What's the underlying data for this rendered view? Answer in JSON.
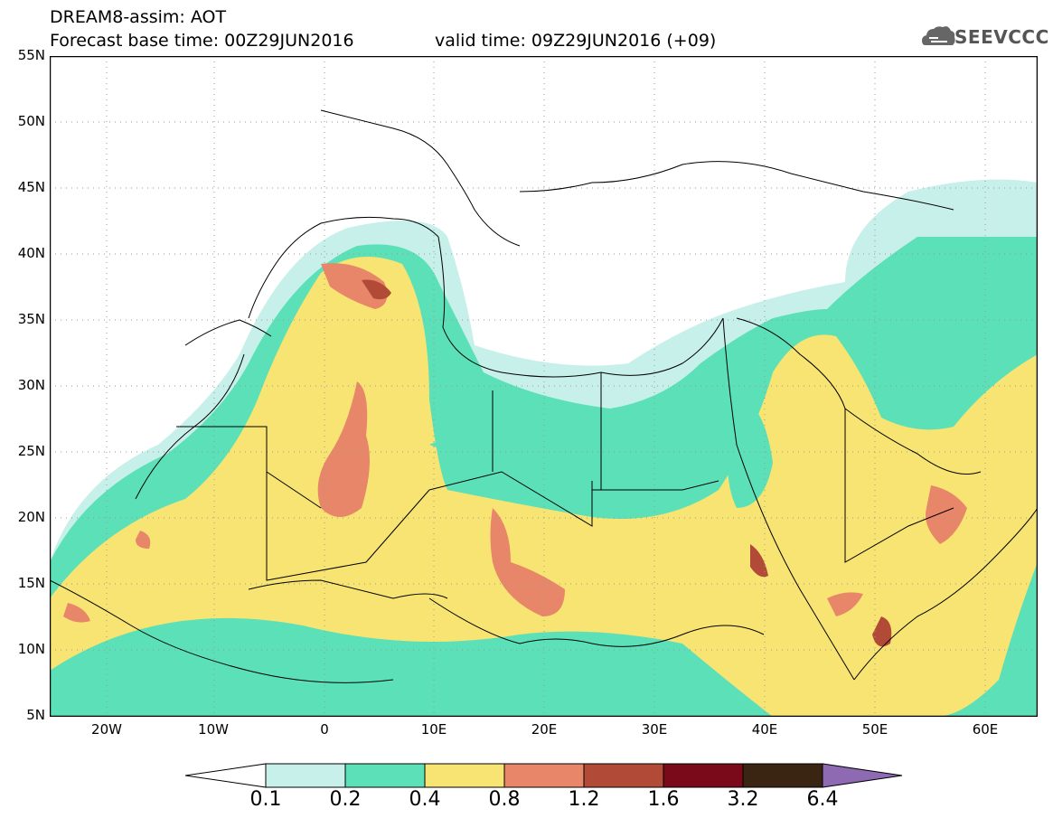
{
  "header": {
    "title_line1": "DREAM8-assim: AOT",
    "title_line2": "Forecast base time: 00Z29JUN2016",
    "valid_time": "valid time: 09Z29JUN2016 (+09)"
  },
  "logo": {
    "text": "SEEVCCC",
    "icon": "cloud-icon"
  },
  "axes": {
    "lat_labels": [
      "55N",
      "50N",
      "45N",
      "40N",
      "35N",
      "30N",
      "25N",
      "20N",
      "15N",
      "10N",
      "5N"
    ],
    "lon_labels": [
      "20W",
      "10W",
      "0",
      "10E",
      "20E",
      "30E",
      "40E",
      "50E",
      "60E"
    ]
  },
  "colorbar": {
    "levels": [
      "0.1",
      "0.2",
      "0.4",
      "0.8",
      "1.2",
      "1.6",
      "3.2",
      "6.4"
    ],
    "colors": [
      "#ffffff",
      "#c8f0ea",
      "#5ce0b8",
      "#f7e472",
      "#e8866a",
      "#b24a38",
      "#7a0a1a",
      "#3a2412",
      "#8e6ab2"
    ]
  },
  "map": {
    "variable": "AOT"
  }
}
